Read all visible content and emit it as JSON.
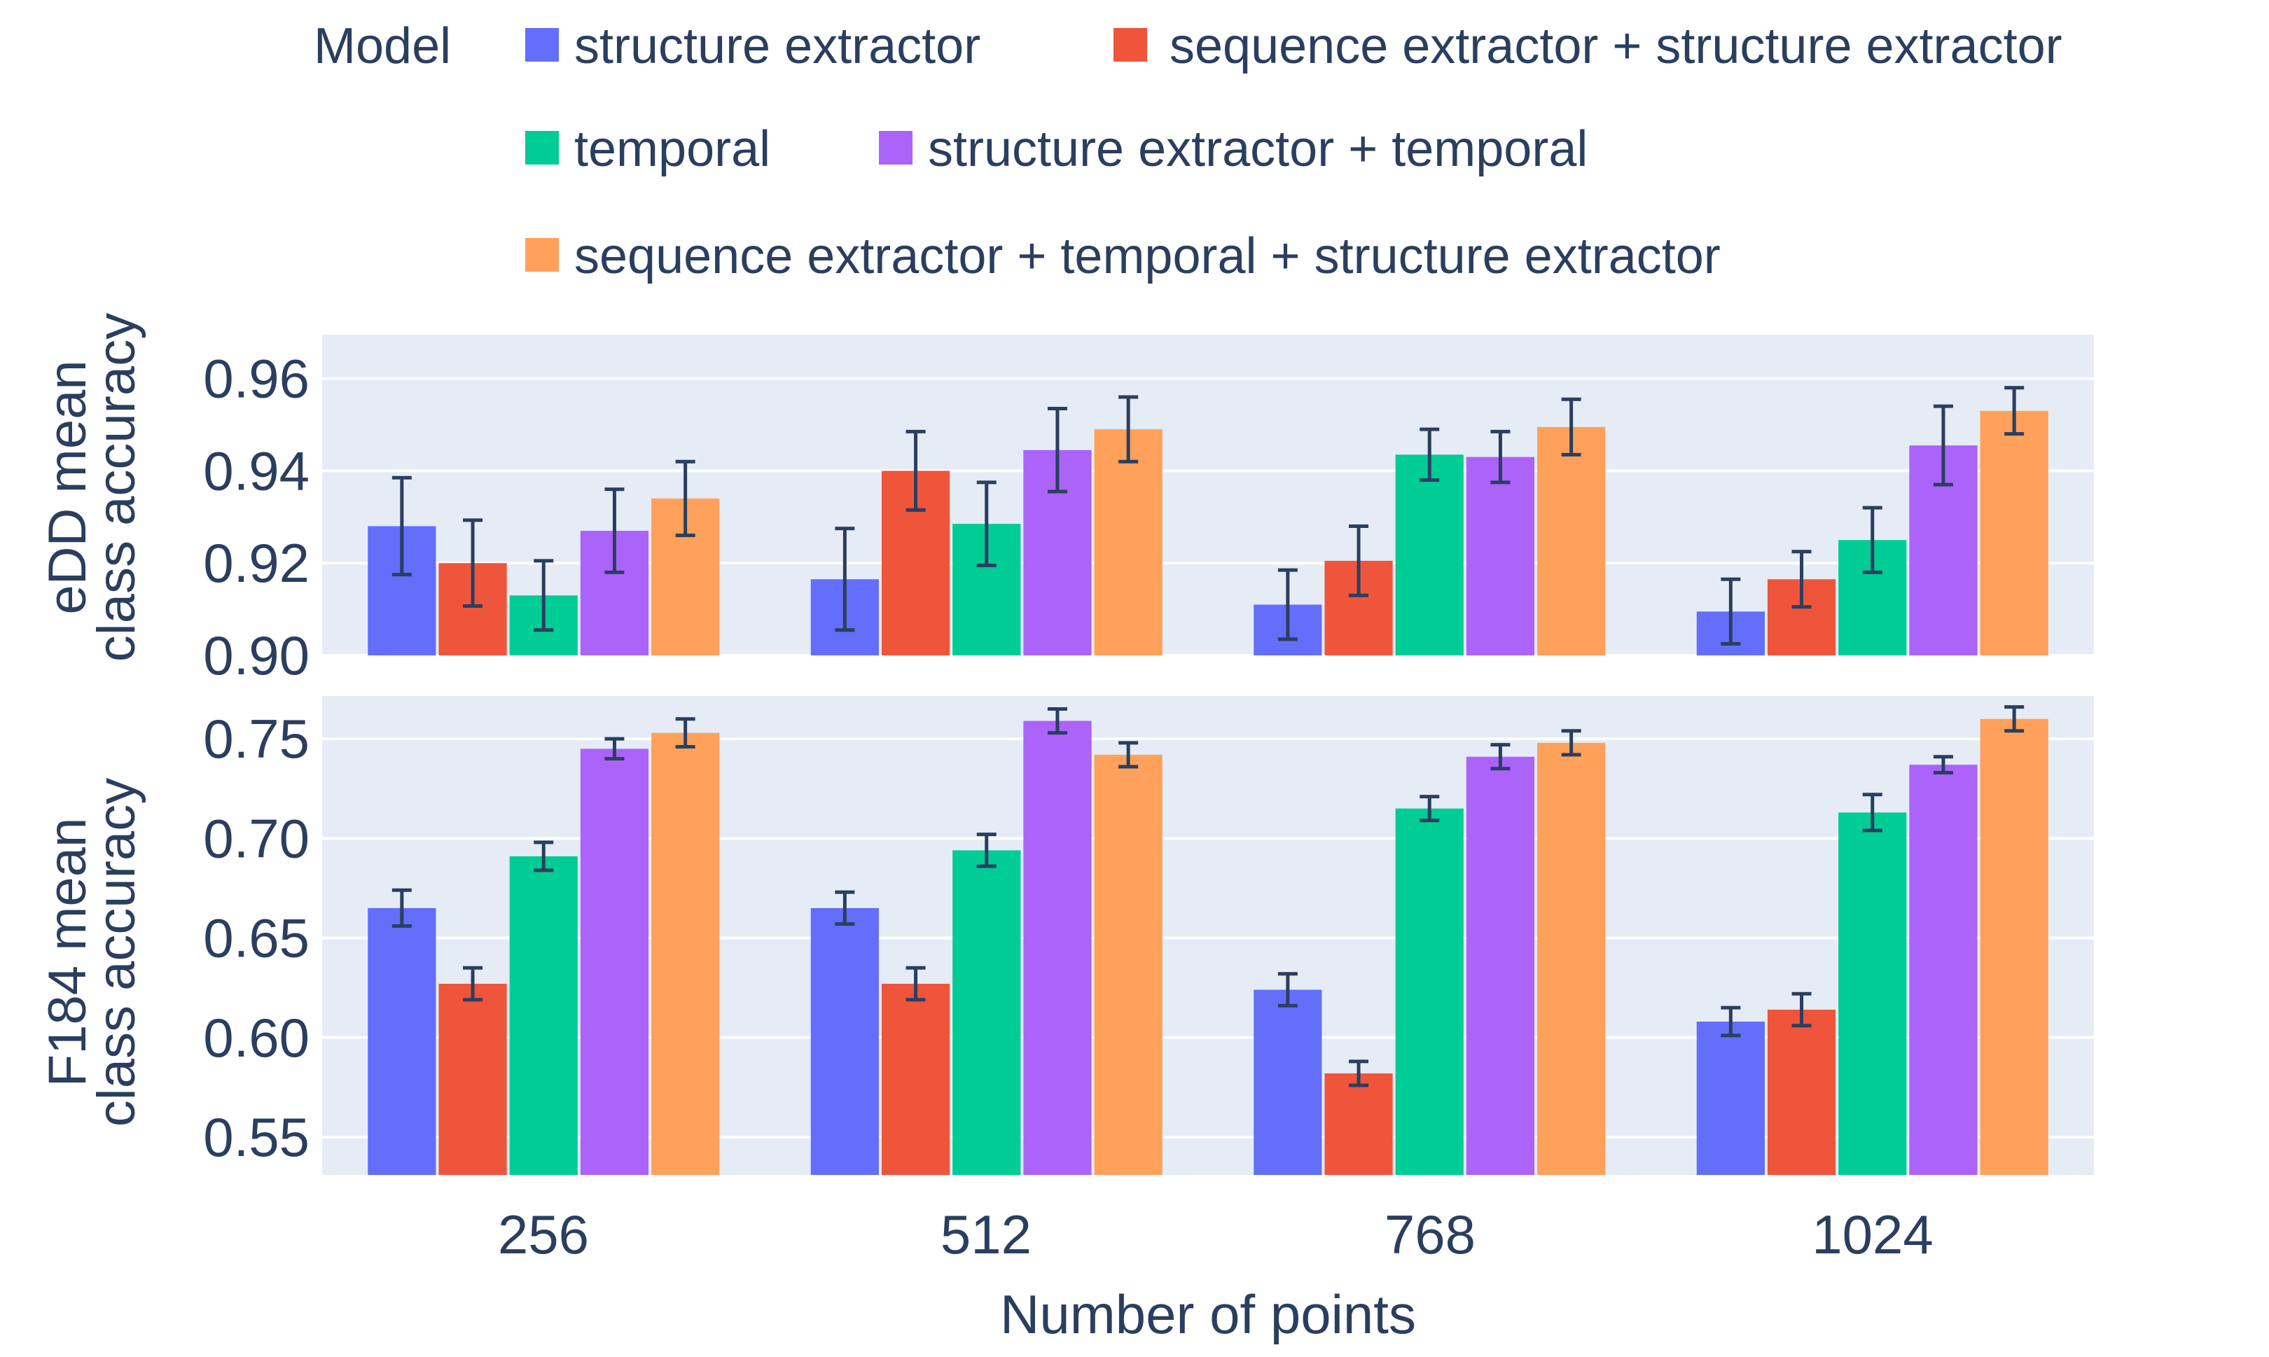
{
  "chart_data": {
    "type": "bar",
    "legend": {
      "title": "Model",
      "placement": "top",
      "entries": [
        {
          "name": "structure extractor",
          "color": "#636efa"
        },
        {
          "name": "sequence extractor + structure extractor",
          "color": "#ef553b"
        },
        {
          "name": "temporal",
          "color": "#00cc96"
        },
        {
          "name": "structure extractor + temporal",
          "color": "#ab63fa"
        },
        {
          "name": "sequence extractor + temporal + structure extractor",
          "color": "#ffa15a"
        }
      ]
    },
    "xlabel": "Number of points",
    "categories": [
      "256",
      "512",
      "768",
      "1024"
    ],
    "background_color": "#e5ecf6",
    "grid_color": "#ffffff",
    "errorbar_color": "#2a3f5f",
    "panels": [
      {
        "ylabel_lines": [
          "eDD mean",
          "class accuracy"
        ],
        "ylim": [
          0.9,
          0.9695
        ],
        "yticks": [
          "0.90",
          "0.92",
          "0.94",
          "0.96"
        ],
        "series": [
          {
            "name": "structure extractor",
            "values": [
              0.928,
              0.9165,
              0.911,
              0.9095
            ],
            "errors": [
              0.0105,
              0.011,
              0.0075,
              0.007
            ]
          },
          {
            "name": "sequence extractor + structure extractor",
            "values": [
              0.92,
              0.94,
              0.9205,
              0.9165
            ],
            "errors": [
              0.0093,
              0.0085,
              0.0075,
              0.006
            ]
          },
          {
            "name": "temporal",
            "values": [
              0.913,
              0.9285,
              0.9435,
              0.925
            ],
            "errors": [
              0.0075,
              0.009,
              0.0055,
              0.007
            ]
          },
          {
            "name": "structure extractor + temporal",
            "values": [
              0.927,
              0.9445,
              0.943,
              0.9455
            ],
            "errors": [
              0.009,
              0.009,
              0.0055,
              0.0085
            ]
          },
          {
            "name": "sequence extractor + temporal + structure extractor",
            "values": [
              0.934,
              0.949,
              0.9495,
              0.953
            ],
            "errors": [
              0.008,
              0.007,
              0.006,
              0.005
            ]
          }
        ]
      },
      {
        "ylabel_lines": [
          "F184 mean",
          "class accuracy"
        ],
        "ylim": [
          0.531,
          0.7715
        ],
        "yticks": [
          "0.55",
          "0.60",
          "0.65",
          "0.70",
          "0.75"
        ],
        "series": [
          {
            "name": "structure extractor",
            "values": [
              0.665,
              0.665,
              0.624,
              0.608
            ],
            "errors": [
              0.009,
              0.008,
              0.008,
              0.007
            ]
          },
          {
            "name": "sequence extractor + structure extractor",
            "values": [
              0.627,
              0.627,
              0.582,
              0.614
            ],
            "errors": [
              0.008,
              0.008,
              0.006,
              0.008
            ]
          },
          {
            "name": "temporal",
            "values": [
              0.691,
              0.694,
              0.715,
              0.713
            ],
            "errors": [
              0.007,
              0.008,
              0.006,
              0.009
            ]
          },
          {
            "name": "structure extractor + temporal",
            "values": [
              0.745,
              0.759,
              0.741,
              0.737
            ],
            "errors": [
              0.005,
              0.006,
              0.006,
              0.004
            ]
          },
          {
            "name": "sequence extractor + temporal + structure extractor",
            "values": [
              0.753,
              0.742,
              0.748,
              0.76
            ],
            "errors": [
              0.007,
              0.006,
              0.006,
              0.006
            ]
          }
        ]
      }
    ]
  }
}
